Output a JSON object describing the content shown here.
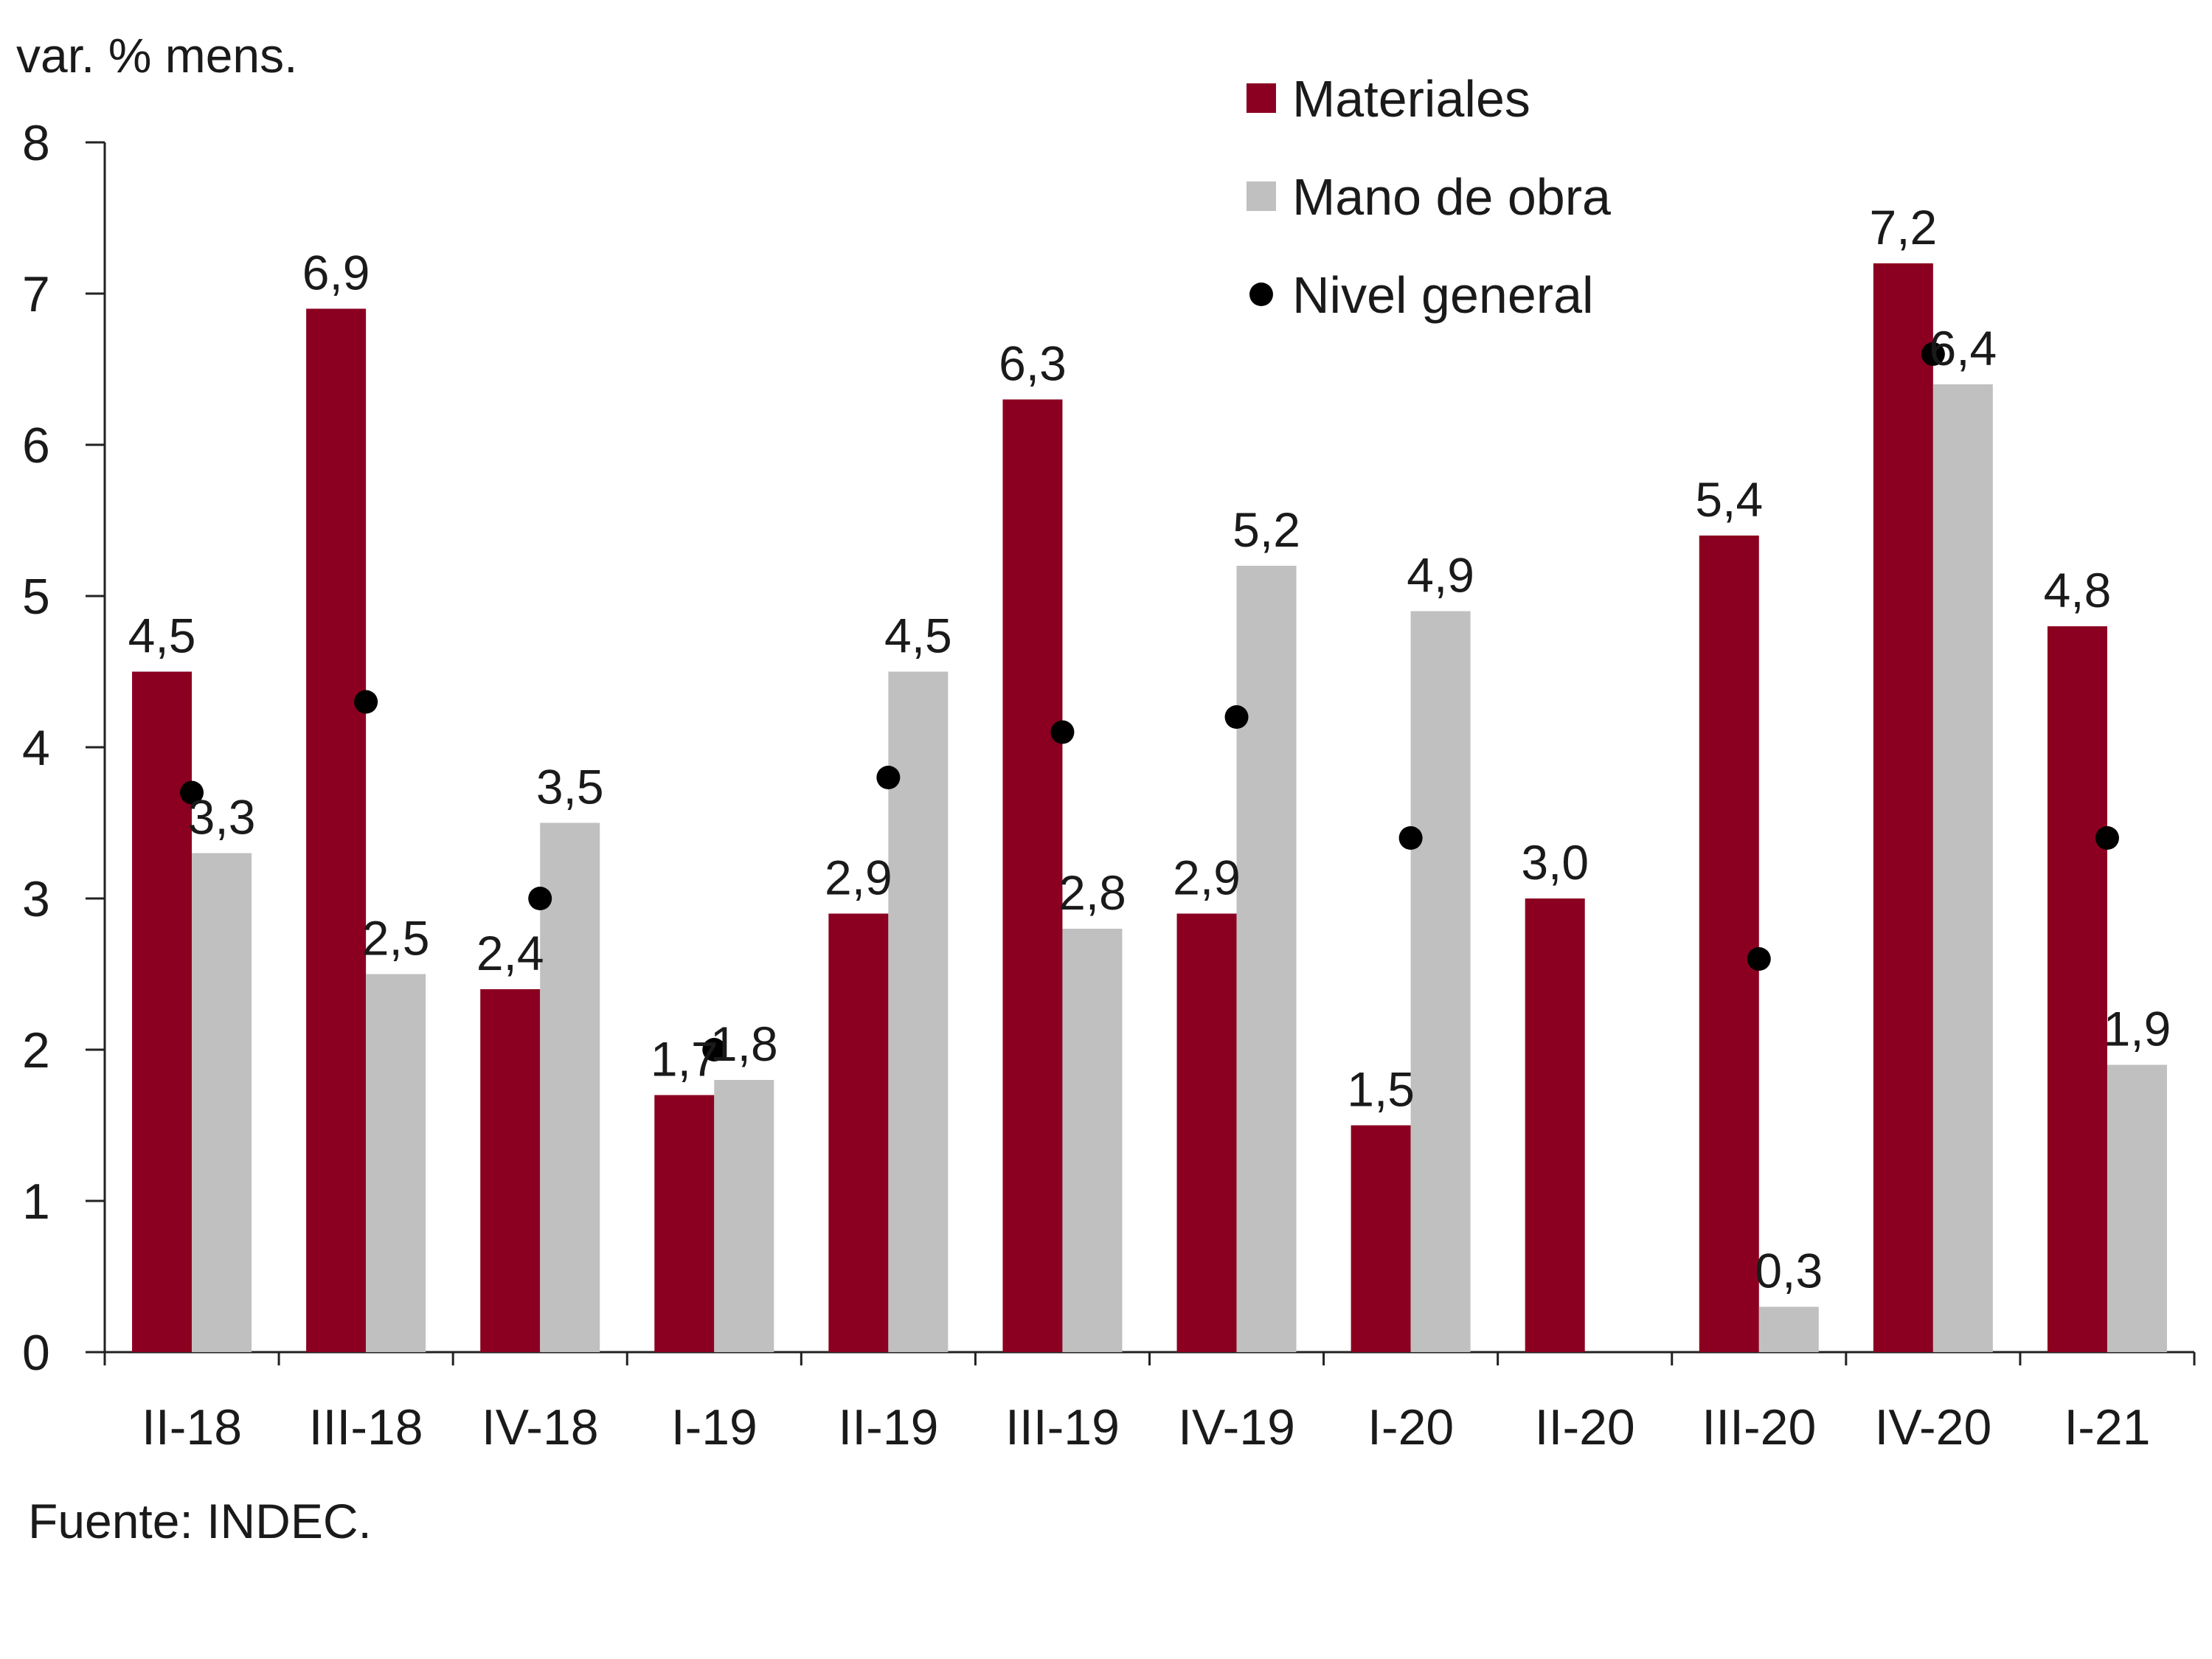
{
  "chart_data": {
    "type": "bar",
    "unit_label": "var. % mens.",
    "categories": [
      "II-18",
      "III-18",
      "IV-18",
      "I-19",
      "II-19",
      "III-19",
      "IV-19",
      "I-20",
      "II-20",
      "III-20",
      "IV-20",
      "I-21"
    ],
    "series": [
      {
        "name": "Materiales",
        "kind": "bar",
        "color": "#8b0020",
        "values": [
          4.5,
          6.9,
          2.4,
          1.7,
          2.9,
          6.3,
          2.9,
          1.5,
          3.0,
          5.4,
          7.2,
          4.8
        ],
        "labels": [
          "4,5",
          "6,9",
          "2,4",
          "1,7",
          "2,9",
          "6,3",
          "2,9",
          "1,5",
          "3,0",
          "5,4",
          "7,2",
          "4,8"
        ]
      },
      {
        "name": "Mano de obra",
        "kind": "bar",
        "color": "#c0c0c0",
        "values": [
          3.3,
          2.5,
          3.5,
          1.8,
          4.5,
          2.8,
          5.2,
          4.9,
          null,
          0.3,
          6.4,
          1.9
        ],
        "labels": [
          "3,3",
          "2,5",
          "3,5",
          "1,8",
          "4,5",
          "2,8",
          "5,2",
          "4,9",
          null,
          "0,3",
          "6,4",
          "1,9"
        ]
      },
      {
        "name": "Nivel general",
        "kind": "point",
        "color": "#000000",
        "values": [
          3.7,
          4.3,
          3.0,
          2.0,
          3.8,
          4.1,
          4.2,
          3.4,
          null,
          2.6,
          6.6,
          3.4
        ]
      }
    ],
    "ylim": [
      0,
      8
    ],
    "yticks": [
      0,
      1,
      2,
      3,
      4,
      5,
      6,
      7,
      8
    ],
    "legend_position": "top-right",
    "source": "Fuente: INDEC."
  }
}
